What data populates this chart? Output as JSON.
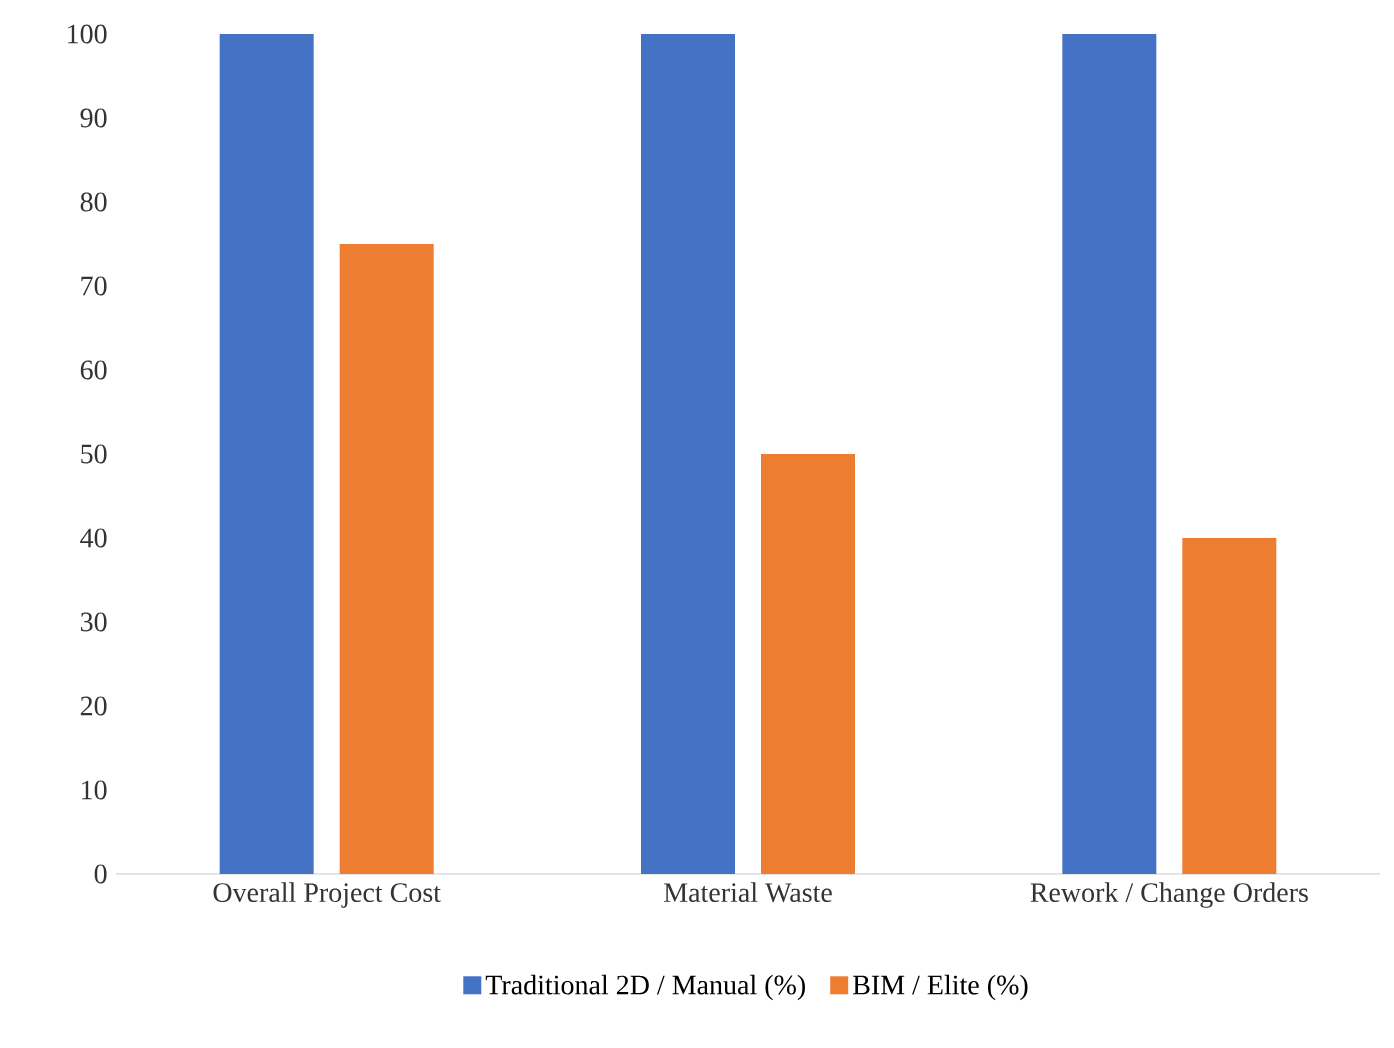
{
  "chart_data": {
    "type": "bar",
    "categories": [
      "Overall Project Cost",
      "Material Waste",
      "Rework / Change Orders"
    ],
    "series": [
      {
        "name": "Traditional 2D / Manual (%)",
        "color": "#4472c4",
        "values": [
          100,
          100,
          100
        ]
      },
      {
        "name": "BIM / Elite (%)",
        "color": "#ed7d31",
        "values": [
          75,
          50,
          40
        ]
      }
    ],
    "ylim": [
      0,
      100
    ],
    "yticks": [
      0,
      10,
      20,
      30,
      40,
      50,
      60,
      70,
      80,
      90,
      100
    ],
    "legend": "bottom"
  }
}
